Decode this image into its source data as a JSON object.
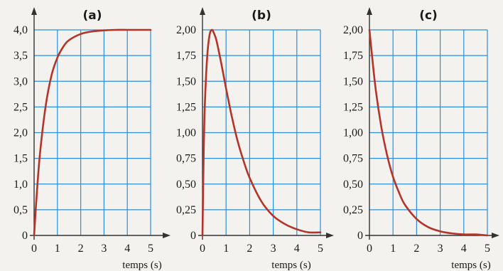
{
  "colors": {
    "grid": "#2a8fd6",
    "curve": "#b5342a",
    "axis": "#333333",
    "background": "#f3f2ee"
  },
  "chart_data": [
    {
      "type": "line",
      "title": "(a)",
      "xlabel": "temps (s)",
      "ylabel": "",
      "xlim": [
        0,
        5
      ],
      "ylim": [
        0,
        4
      ],
      "x_ticks": [
        "0",
        "1",
        "2",
        "3",
        "4",
        "5"
      ],
      "y_ticks": [
        "0",
        "0,5",
        "1,0",
        "1,5",
        "2,0",
        "2,5",
        "3,0",
        "3,5",
        "4,0"
      ],
      "grid": true,
      "series": [
        {
          "x": [
            0,
            0.1,
            0.25,
            0.5,
            0.75,
            1.0,
            1.25,
            1.5,
            2.0,
            2.5,
            3.0,
            3.5,
            4.0,
            4.5,
            5.0
          ],
          "y": [
            0,
            0.71,
            1.58,
            2.53,
            3.12,
            3.46,
            3.67,
            3.8,
            3.92,
            3.97,
            3.99,
            4.0,
            4.0,
            4.0,
            4.0
          ]
        }
      ]
    },
    {
      "type": "line",
      "title": "(b)",
      "xlabel": "temps (s)",
      "ylabel": "",
      "xlim": [
        0,
        5
      ],
      "ylim": [
        0,
        2
      ],
      "x_ticks": [
        "0",
        "1",
        "2",
        "3",
        "4",
        "5"
      ],
      "y_ticks": [
        "0",
        "0,25",
        "0,50",
        "0,75",
        "1,00",
        "1,25",
        "1,50",
        "1,75",
        "2,00"
      ],
      "grid": true,
      "series": [
        {
          "x": [
            0,
            0.05,
            0.1,
            0.2,
            0.3,
            0.4,
            0.5,
            0.6,
            0.8,
            1.0,
            1.25,
            1.5,
            1.75,
            2.0,
            2.5,
            3.0,
            3.5,
            4.0,
            4.5,
            5.0
          ],
          "y": [
            0,
            0.78,
            1.27,
            1.74,
            1.95,
            2.0,
            1.96,
            1.89,
            1.67,
            1.43,
            1.15,
            0.91,
            0.72,
            0.56,
            0.33,
            0.19,
            0.11,
            0.06,
            0.03,
            0.03
          ]
        }
      ]
    },
    {
      "type": "line",
      "title": "(c)",
      "xlabel": "temps (s)",
      "ylabel": "",
      "xlim": [
        0,
        5
      ],
      "ylim": [
        0,
        2
      ],
      "x_ticks": [
        "0",
        "1",
        "2",
        "3",
        "4",
        "5"
      ],
      "y_ticks": [
        "0",
        "0,25",
        "0,50",
        "0,75",
        "1,00",
        "1,25",
        "1,50",
        "1,75",
        "2,00"
      ],
      "grid": true,
      "series": [
        {
          "x": [
            0,
            0.25,
            0.5,
            0.75,
            1.0,
            1.25,
            1.5,
            2.0,
            2.5,
            3.0,
            3.5,
            4.0,
            4.5,
            5.0
          ],
          "y": [
            2.0,
            1.45,
            1.06,
            0.78,
            0.57,
            0.42,
            0.3,
            0.16,
            0.08,
            0.04,
            0.02,
            0.01,
            0.01,
            0.0
          ]
        }
      ]
    }
  ]
}
